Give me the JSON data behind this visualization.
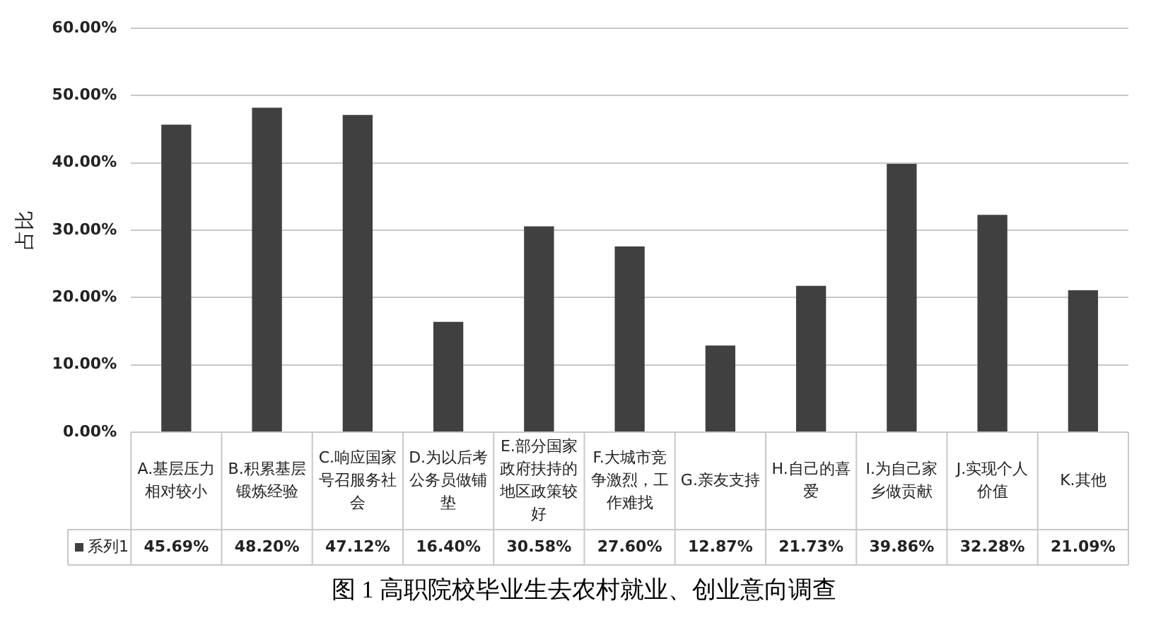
{
  "chart_data": {
    "type": "bar",
    "title": "图 1  高职院校毕业生去农村就业、创业意向调查",
    "ylabel": "占比",
    "categories": [
      "A.基层压力相对较小",
      "B.积累基层锻炼经验",
      "C.响应国家号召服务社会",
      "D.为以后考公务员做铺垫",
      "E.部分国家政府扶持的地区政策较好",
      "F.大城市竞争激烈，工作难找",
      "G.亲友支持",
      "H.自己的喜爱",
      "I.为自己家乡做贡献",
      "J.实现个人价值",
      "K.其他"
    ],
    "series": [
      {
        "name": "系列1",
        "color": "#404040",
        "values": [
          45.69,
          48.2,
          47.12,
          16.4,
          30.58,
          27.6,
          12.87,
          21.73,
          39.86,
          32.28,
          21.09
        ],
        "value_labels": [
          "45.69%",
          "48.20%",
          "47.12%",
          "16.40%",
          "30.58%",
          "27.60%",
          "12.87%",
          "21.73%",
          "39.86%",
          "32.28%",
          "21.09%"
        ]
      }
    ],
    "ylim": [
      0,
      60
    ],
    "yticks": [
      {
        "value": 0,
        "label": "0.00%"
      },
      {
        "value": 10,
        "label": "10.00%"
      },
      {
        "value": 20,
        "label": "20.00%"
      },
      {
        "value": 30,
        "label": "30.00%"
      },
      {
        "value": 40,
        "label": "40.00%"
      },
      {
        "value": 50,
        "label": "50.00%"
      },
      {
        "value": 60,
        "label": "60.00%"
      }
    ],
    "grid": "y",
    "legend": "bottom"
  }
}
